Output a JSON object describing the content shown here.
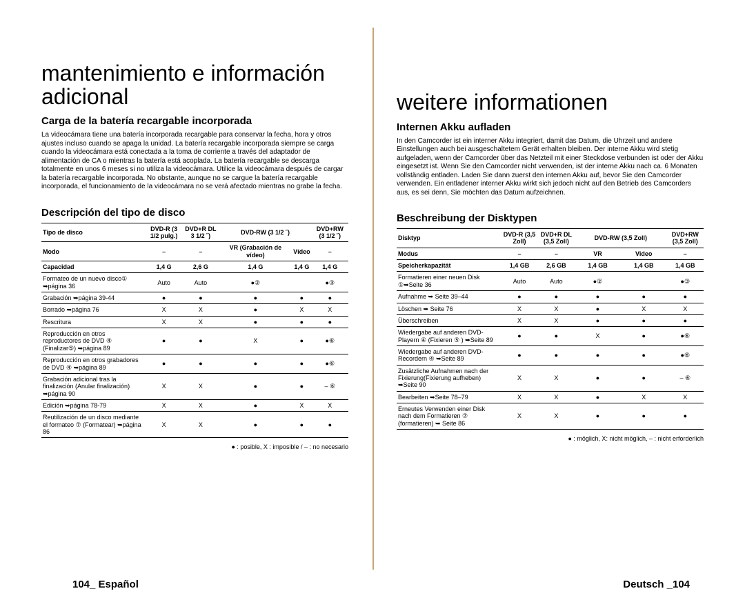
{
  "left": {
    "title": "mantenimiento e información adicional",
    "section1": {
      "heading": "Carga de la batería recargable incorporada",
      "body": "La videocámara tiene una batería incorporada recargable para conservar la fecha, hora y otros ajustes incluso cuando se apaga la unidad. La batería recargable incorporada siempre se carga cuando la videocámara está conectada a la toma de corriente a través del adaptador de alimentación de CA o mientras la batería está acoplada. La batería recargable se descarga totalmente en unos 6 meses si no utiliza la videocámara. Utilice la videocámara después de cargar la batería recargable incorporada. No obstante, aunque no se cargue la batería recargable incorporada, el funcionamiento de la videocámara no se verá afectado mientras no grabe la fecha."
    },
    "section2": {
      "heading": "Descripción del tipo de disco",
      "table": {
        "headers": [
          "Tipo de disco",
          "DVD-R (3 1/2 pulg.)",
          "DVD+R DL 3 1/2 ˝)",
          "DVD-RW (3 1/2 ˝)",
          "",
          "DVD+RW (3 1/2 ˝)"
        ],
        "subheaders": [
          "Modo",
          "–",
          "–",
          "VR (Grabación de vídeo)",
          "Vídeo",
          "–"
        ],
        "rows": [
          [
            "Capacidad",
            "1,4 G",
            "2,6 G",
            "1,4 G",
            "1,4 G",
            "1,4 G"
          ],
          [
            "Formateo de un nuevo disco① ➥página 36",
            "Auto",
            "Auto",
            "●②",
            "",
            "●③"
          ],
          [
            "Grabación ➥página 39-44",
            "●",
            "●",
            "●",
            "●",
            "●"
          ],
          [
            "Borrado ➥página 76",
            "X",
            "X",
            "●",
            "X",
            "X"
          ],
          [
            "Rescritura",
            "X",
            "X",
            "●",
            "●",
            "●"
          ],
          [
            "Reproducción en otros reproductores de DVD ④ (Finalizar⑤) ➥página 89",
            "●",
            "●",
            "X",
            "●",
            "●⑥"
          ],
          [
            "Reproducción en otros grabadores de DVD ④ ➥página 89",
            "●",
            "●",
            "●",
            "●",
            "●⑥"
          ],
          [
            "Grabación adicional tras la finalización (Anular finalización) ➥página 90",
            "X",
            "X",
            "●",
            "●",
            "– ⑥"
          ],
          [
            "Edición ➥página 78-79",
            "X",
            "X",
            "●",
            "X",
            "X"
          ],
          [
            "Reutilización de un disco mediante el formateo ⑦ (Formatear) ➥página 86",
            "X",
            "X",
            "●",
            "●",
            "●"
          ]
        ]
      },
      "legend": "● : posible,  X : imposible / – : no necesario"
    },
    "footer": "104_ Español"
  },
  "right": {
    "title": "weitere informationen",
    "section1": {
      "heading": "Internen Akku aufladen",
      "body": "In den Camcorder ist ein interner Akku integriert, damit das Datum, die Uhrzeit und andere Einstellungen auch bei ausgeschaltetem Gerät erhalten bleiben. Der interne Akku wird stetig aufgeladen, wenn der Camcorder über das Netzteil mit einer Steckdose verbunden ist oder der Akku eingesetzt ist. Wenn Sie den Camcorder nicht verwenden, ist der interne Akku nach ca. 6 Monaten vollständig entladen. Laden Sie dann zuerst den internen Akku auf, bevor Sie den Camcorder verwenden. Ein entladener interner Akku wirkt sich jedoch nicht auf den Betrieb des Camcorders aus, es sei denn, Sie möchten das Datum aufzeichnen."
    },
    "section2": {
      "heading": "Beschreibung der Disktypen",
      "table": {
        "headers": [
          "Disktyp",
          "DVD-R (3,5 Zoll)",
          "DVD+R DL (3,5 Zoll)",
          "DVD-RW (3,5 Zoll)",
          "",
          "DVD+RW (3,5 Zoll)"
        ],
        "subheaders": [
          "Modus",
          "–",
          "–",
          "VR",
          "Video",
          "–"
        ],
        "rows": [
          [
            "Speicherkapazität",
            "1,4 GB",
            "2,6 GB",
            "1,4 GB",
            "1,4 GB",
            "1,4 GB"
          ],
          [
            "Formatieren einer neuen Disk ①➥Seite 36",
            "Auto",
            "Auto",
            "●②",
            "",
            "●③"
          ],
          [
            "Aufnahme ➥ Seite 39–44",
            "●",
            "●",
            "●",
            "●",
            "●"
          ],
          [
            "Löschen ➥ Seite 76",
            "X",
            "X",
            "●",
            "X",
            "X"
          ],
          [
            "Überschreiben",
            "X",
            "X",
            "●",
            "●",
            "●"
          ],
          [
            "Wiedergabe auf anderen DVD-Playern ④  (Fixieren ⑤ ) ➥Seite 89",
            "●",
            "●",
            "X",
            "●",
            "●⑥"
          ],
          [
            "Wiedergabe auf anderen DVD-Recordern ④ ➥Seite 89",
            "●",
            "●",
            "●",
            "●",
            "●⑥"
          ],
          [
            "Zusätzliche Aufnahmen nach der Fixierung(Fixierung aufheben) ➥Seite 90",
            "X",
            "X",
            "●",
            "●",
            "– ⑥"
          ],
          [
            "Bearbeiten ➥Seite 78–79",
            "X",
            "X",
            "●",
            "X",
            "X"
          ],
          [
            "Erneutes Verwenden einer Disk nach dem Formatieren ⑦ (formatieren) ➥ Seite 86",
            "X",
            "X",
            "●",
            "●",
            "●"
          ]
        ]
      },
      "legend": "● : möglich,  X: nicht möglich,  – : nicht erforderlich"
    },
    "footer": "Deutsch _104"
  },
  "colors": {
    "divider": "#d4a15a",
    "text": "#000000",
    "background": "#ffffff"
  }
}
